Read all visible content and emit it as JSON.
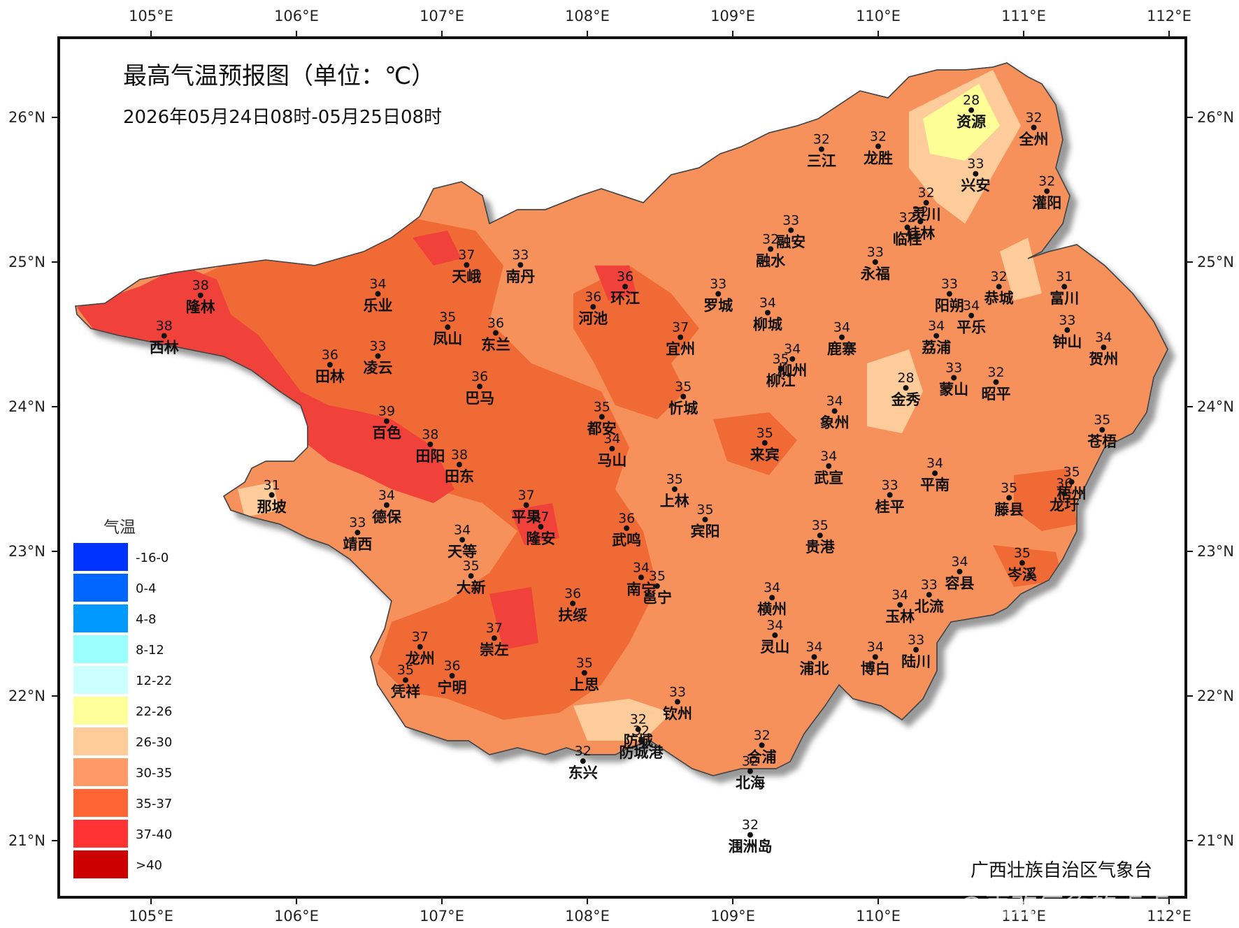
{
  "map": {
    "title": "最高气温预报图（单位：℃）",
    "subtitle": "2026年05月24日08时-05月25日08时",
    "credit": "广西壮族自治区气象台",
    "watermark": "@喜欢气象的点点",
    "lon_ticks": [
      "105°E",
      "106°E",
      "107°E",
      "108°E",
      "109°E",
      "110°E",
      "111°E",
      "112°E"
    ],
    "lat_ticks": [
      "26°N",
      "25°N",
      "24°N",
      "23°N",
      "22°N",
      "21°N"
    ],
    "colors": {
      "t26_30": "#fdcc9a",
      "t30_35": "#f7915c",
      "t35_37": "#f06a35",
      "t37_40": "#f0413a",
      "t22_26": "#fefe96"
    }
  },
  "legend": {
    "title": "气温",
    "items": [
      {
        "label": "-16-0",
        "color": "#0033ff"
      },
      {
        "label": "0-4",
        "color": "#0066ff"
      },
      {
        "label": "4-8",
        "color": "#0099ff"
      },
      {
        "label": "8-12",
        "color": "#99ffff"
      },
      {
        "label": "12-22",
        "color": "#ccffff"
      },
      {
        "label": "22-26",
        "color": "#ffff99"
      },
      {
        "label": "26-30",
        "color": "#ffcc99"
      },
      {
        "label": "30-35",
        "color": "#ff9966"
      },
      {
        "label": "35-37",
        "color": "#ff6633"
      },
      {
        "label": "37-40",
        "color": "#ff3333"
      },
      {
        "label": ">40",
        "color": "#cc0000"
      }
    ]
  },
  "stations": [
    {
      "name": "资源",
      "value": "28",
      "lon": 110.64,
      "lat": 26.05
    },
    {
      "name": "全州",
      "value": "32",
      "lon": 111.07,
      "lat": 25.93
    },
    {
      "name": "三江",
      "value": "32",
      "lon": 109.61,
      "lat": 25.78
    },
    {
      "name": "龙胜",
      "value": "32",
      "lon": 110.0,
      "lat": 25.8
    },
    {
      "name": "兴安",
      "value": "33",
      "lon": 110.67,
      "lat": 25.61
    },
    {
      "name": "灌阳",
      "value": "32",
      "lon": 111.16,
      "lat": 25.49
    },
    {
      "name": "灵川",
      "value": "32",
      "lon": 110.33,
      "lat": 25.41
    },
    {
      "name": "桂林",
      "value": "32",
      "lon": 110.29,
      "lat": 25.28
    },
    {
      "name": "融安",
      "value": "33",
      "lon": 109.4,
      "lat": 25.22
    },
    {
      "name": "融水",
      "value": "32",
      "lon": 109.26,
      "lat": 25.09
    },
    {
      "name": "临桂",
      "value": "32",
      "lon": 110.2,
      "lat": 25.24
    },
    {
      "name": "永福",
      "value": "33",
      "lon": 109.98,
      "lat": 25.0
    },
    {
      "name": "富川",
      "value": "31",
      "lon": 111.28,
      "lat": 24.83
    },
    {
      "name": "天峨",
      "value": "37",
      "lon": 107.17,
      "lat": 24.98
    },
    {
      "name": "南丹",
      "value": "33",
      "lon": 107.54,
      "lat": 24.98
    },
    {
      "name": "隆林",
      "value": "38",
      "lon": 105.34,
      "lat": 24.77
    },
    {
      "name": "环江",
      "value": "36",
      "lon": 108.26,
      "lat": 24.83
    },
    {
      "name": "阳朔",
      "value": "33",
      "lon": 110.49,
      "lat": 24.78
    },
    {
      "name": "恭城",
      "value": "32",
      "lon": 110.83,
      "lat": 24.83
    },
    {
      "name": "平乐",
      "value": "34",
      "lon": 110.64,
      "lat": 24.63
    },
    {
      "name": "乐业",
      "value": "34",
      "lon": 106.56,
      "lat": 24.78
    },
    {
      "name": "河池",
      "value": "36",
      "lon": 108.04,
      "lat": 24.69
    },
    {
      "name": "罗城",
      "value": "33",
      "lon": 108.9,
      "lat": 24.78
    },
    {
      "name": "柳城",
      "value": "34",
      "lon": 109.24,
      "lat": 24.65
    },
    {
      "name": "西林",
      "value": "38",
      "lon": 105.09,
      "lat": 24.49
    },
    {
      "name": "凤山",
      "value": "35",
      "lon": 107.04,
      "lat": 24.55
    },
    {
      "name": "东兰",
      "value": "36",
      "lon": 107.37,
      "lat": 24.51
    },
    {
      "name": "宜州",
      "value": "37",
      "lon": 108.64,
      "lat": 24.48
    },
    {
      "name": "鹿寨",
      "value": "34",
      "lon": 109.75,
      "lat": 24.48
    },
    {
      "name": "荔浦",
      "value": "34",
      "lon": 110.4,
      "lat": 24.49
    },
    {
      "name": "钟山",
      "value": "33",
      "lon": 111.3,
      "lat": 24.53
    },
    {
      "name": "贺州",
      "value": "34",
      "lon": 111.55,
      "lat": 24.41
    },
    {
      "name": "田林",
      "value": "36",
      "lon": 106.23,
      "lat": 24.29
    },
    {
      "name": "凌云",
      "value": "33",
      "lon": 106.56,
      "lat": 24.35
    },
    {
      "name": "柳州",
      "value": "34",
      "lon": 109.41,
      "lat": 24.33
    },
    {
      "name": "柳江",
      "value": "35",
      "lon": 109.33,
      "lat": 24.26
    },
    {
      "name": "蒙山",
      "value": "33",
      "lon": 110.52,
      "lat": 24.2
    },
    {
      "name": "昭平",
      "value": "32",
      "lon": 110.81,
      "lat": 24.17
    },
    {
      "name": "金秀",
      "value": "28",
      "lon": 110.19,
      "lat": 24.13
    },
    {
      "name": "巴马",
      "value": "36",
      "lon": 107.26,
      "lat": 24.14
    },
    {
      "name": "忻城",
      "value": "35",
      "lon": 108.66,
      "lat": 24.07
    },
    {
      "name": "象州",
      "value": "34",
      "lon": 109.7,
      "lat": 23.97
    },
    {
      "name": "苍梧",
      "value": "35",
      "lon": 111.54,
      "lat": 23.84
    },
    {
      "name": "都安",
      "value": "35",
      "lon": 108.1,
      "lat": 23.93
    },
    {
      "name": "百色",
      "value": "39",
      "lon": 106.62,
      "lat": 23.9
    },
    {
      "name": "田阳",
      "value": "38",
      "lon": 106.92,
      "lat": 23.74
    },
    {
      "name": "田东",
      "value": "38",
      "lon": 107.12,
      "lat": 23.6
    },
    {
      "name": "马山",
      "value": "34",
      "lon": 108.17,
      "lat": 23.71
    },
    {
      "name": "来宾",
      "value": "35",
      "lon": 109.22,
      "lat": 23.75
    },
    {
      "name": "武宣",
      "value": "34",
      "lon": 109.66,
      "lat": 23.59
    },
    {
      "name": "平南",
      "value": "34",
      "lon": 110.39,
      "lat": 23.54
    },
    {
      "name": "梧州",
      "value": "35",
      "lon": 111.33,
      "lat": 23.48
    },
    {
      "name": "龙圩",
      "value": "36",
      "lon": 111.28,
      "lat": 23.4
    },
    {
      "name": "藤县",
      "value": "35",
      "lon": 110.9,
      "lat": 23.37
    },
    {
      "name": "那坡",
      "value": "31",
      "lon": 105.83,
      "lat": 23.39
    },
    {
      "name": "德保",
      "value": "34",
      "lon": 106.62,
      "lat": 23.32
    },
    {
      "name": "上林",
      "value": "35",
      "lon": 108.6,
      "lat": 23.43
    },
    {
      "name": "宾阳",
      "value": "35",
      "lon": 108.81,
      "lat": 23.22
    },
    {
      "name": "桂平",
      "value": "33",
      "lon": 110.08,
      "lat": 23.39
    },
    {
      "name": "平果",
      "value": "37",
      "lon": 107.58,
      "lat": 23.32
    },
    {
      "name": "隆安",
      "value": "37",
      "lon": 107.68,
      "lat": 23.17
    },
    {
      "name": "武鸣",
      "value": "36",
      "lon": 108.27,
      "lat": 23.16
    },
    {
      "name": "靖西",
      "value": "33",
      "lon": 106.42,
      "lat": 23.13
    },
    {
      "name": "天等",
      "value": "34",
      "lon": 107.14,
      "lat": 23.08
    },
    {
      "name": "贵港",
      "value": "35",
      "lon": 109.6,
      "lat": 23.11
    },
    {
      "name": "岑溪",
      "value": "35",
      "lon": 110.99,
      "lat": 22.92
    },
    {
      "name": "大新",
      "value": "35",
      "lon": 107.2,
      "lat": 22.83
    },
    {
      "name": "南宁",
      "value": "34",
      "lon": 108.37,
      "lat": 22.82
    },
    {
      "name": "邕宁",
      "value": "35",
      "lon": 108.48,
      "lat": 22.76
    },
    {
      "name": "横州",
      "value": "34",
      "lon": 109.27,
      "lat": 22.68
    },
    {
      "name": "容县",
      "value": "34",
      "lon": 110.56,
      "lat": 22.86
    },
    {
      "name": "玉林",
      "value": "34",
      "lon": 110.15,
      "lat": 22.63
    },
    {
      "name": "北流",
      "value": "33",
      "lon": 110.35,
      "lat": 22.7
    },
    {
      "name": "扶绥",
      "value": "36",
      "lon": 107.9,
      "lat": 22.64
    },
    {
      "name": "龙州",
      "value": "37",
      "lon": 106.85,
      "lat": 22.34
    },
    {
      "name": "崇左",
      "value": "37",
      "lon": 107.36,
      "lat": 22.4
    },
    {
      "name": "灵山",
      "value": "34",
      "lon": 109.29,
      "lat": 22.42
    },
    {
      "name": "浦北",
      "value": "34",
      "lon": 109.56,
      "lat": 22.27
    },
    {
      "name": "博白",
      "value": "34",
      "lon": 109.98,
      "lat": 22.27
    },
    {
      "name": "陆川",
      "value": "33",
      "lon": 110.26,
      "lat": 22.32
    },
    {
      "name": "凭祥",
      "value": "35",
      "lon": 106.75,
      "lat": 22.11
    },
    {
      "name": "宁明",
      "value": "36",
      "lon": 107.07,
      "lat": 22.14
    },
    {
      "name": "上思",
      "value": "35",
      "lon": 107.98,
      "lat": 22.16
    },
    {
      "name": "钦州",
      "value": "33",
      "lon": 108.62,
      "lat": 21.96
    },
    {
      "name": "防城",
      "value": "32",
      "lon": 108.35,
      "lat": 21.77
    },
    {
      "name": "防城港",
      "value": "32",
      "lon": 108.37,
      "lat": 21.69
    },
    {
      "name": "合浦",
      "value": "32",
      "lon": 109.2,
      "lat": 21.66
    },
    {
      "name": "东兴",
      "value": "32",
      "lon": 107.97,
      "lat": 21.55
    },
    {
      "name": "北海",
      "value": "32",
      "lon": 109.12,
      "lat": 21.48
    },
    {
      "name": "涠洲岛",
      "value": "32",
      "lon": 109.12,
      "lat": 21.04
    }
  ]
}
